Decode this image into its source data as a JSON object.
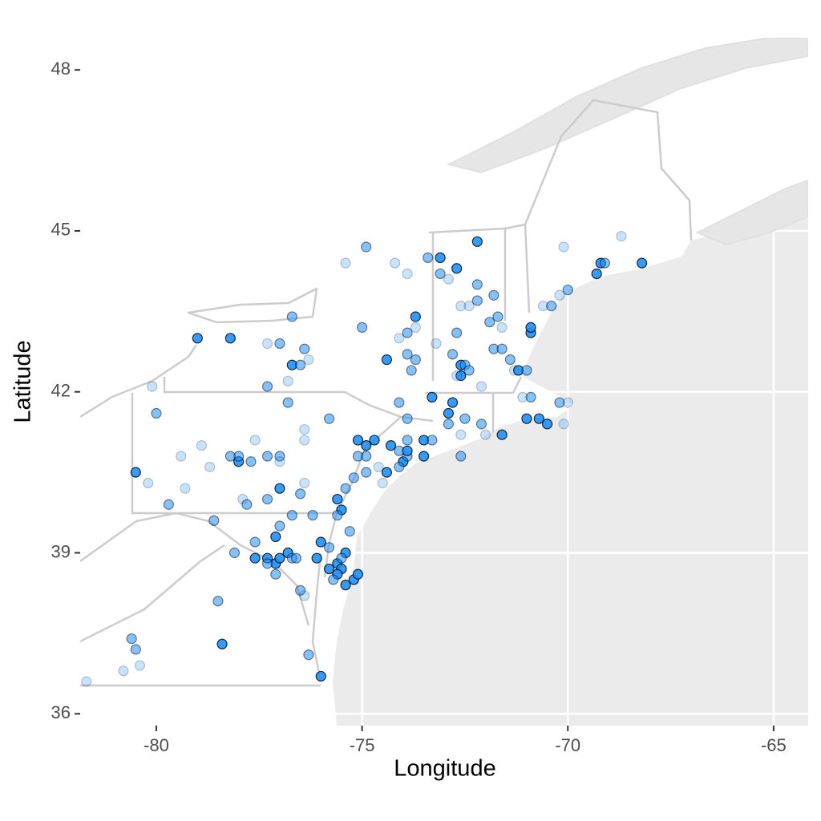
{
  "chart_data": {
    "type": "scatter",
    "xlabel": "Longitude",
    "ylabel": "Latitude",
    "xlim": [
      -81.85,
      -64.16
    ],
    "ylim": [
      35.78,
      48.6
    ],
    "xticks": [
      -80,
      -75,
      -70,
      -65
    ],
    "yticks": [
      36,
      39,
      42,
      45,
      48
    ],
    "grid": true,
    "color": "#1e90ff",
    "x": [
      -81.7,
      -80.8,
      -80.4,
      -80.6,
      -80.5,
      -78.4,
      -78.5,
      -76.3,
      -76.0,
      -80.5,
      -80.2,
      -80.0,
      -80.1,
      -79.7,
      -79.3,
      -78.9,
      -79.4,
      -78.7,
      -79.0,
      -78.2,
      -78.0,
      -78.0,
      -78.2,
      -77.6,
      -77.7,
      -77.3,
      -77.0,
      -77.0,
      -77.9,
      -77.8,
      -77.0,
      -77.3,
      -77.3,
      -77.0,
      -76.7,
      -76.7,
      -76.5,
      -76.4,
      -76.3,
      -77.3,
      -76.8,
      -76.8,
      -76.4,
      -76.4,
      -75.8,
      -76.4,
      -76.5,
      -76.7,
      -76.2,
      -75.6,
      -75.5,
      -75.6,
      -75.4,
      -75.2,
      -74.9,
      -75.1,
      -74.9,
      -75.1,
      -74.9,
      -74.7,
      -74.4,
      -74.3,
      -74.1,
      -74.0,
      -73.9,
      -74.1,
      -73.9,
      -73.5,
      -73.5,
      -73.3,
      -73.9,
      -73.9,
      -74.1,
      -74.4,
      -73.9,
      -73.7,
      -73.8,
      -73.7,
      -73.9,
      -73.7,
      -74.1,
      -75.0,
      -74.9,
      -75.4,
      -74.2,
      -73.9,
      -73.4,
      -73.1,
      -72.7,
      -73.1,
      -72.9,
      -72.2,
      -72.2,
      -72.2,
      -72.6,
      -72.4,
      -71.8,
      -71.9,
      -71.7,
      -71.6,
      -72.7,
      -73.2,
      -70.9,
      -70.9,
      -70.6,
      -70.4,
      -70.2,
      -70.0,
      -70.1,
      -69.3,
      -69.2,
      -69.1,
      -68.7,
      -68.2,
      -72.6,
      -72.6,
      -72.5,
      -72.4,
      -72.8,
      -72.7,
      -72.1,
      -71.8,
      -71.6,
      -71.4,
      -71.3,
      -71.2,
      -71.0,
      -70.9,
      -71.1,
      -71.0,
      -70.7,
      -70.5,
      -70.2,
      -70.0,
      -70.1,
      -71.6,
      -73.3,
      -72.8,
      -72.9,
      -72.9,
      -72.6,
      -72.5,
      -72.1,
      -72.0,
      -72.6,
      -74.6,
      -74.5,
      -75.3,
      -75.4,
      -75.6,
      -75.5,
      -75.6,
      -75.4,
      -75.2,
      -75.1,
      -75.8,
      -75.7,
      -75.5,
      -76.0,
      -76.1,
      -75.8,
      -77.3,
      -77.1,
      -77.0,
      -76.8,
      -76.7,
      -77.1,
      -77.3,
      -76.6,
      -76.5,
      -76.4,
      -77.6,
      -77.6,
      -77.1,
      -77.0,
      -78.1,
      -78.6
    ],
    "y": [
      36.6,
      36.8,
      36.9,
      37.4,
      37.2,
      37.3,
      38.1,
      37.1,
      36.7,
      40.5,
      40.3,
      41.6,
      42.1,
      39.9,
      40.2,
      41.0,
      40.8,
      40.6,
      43.0,
      43.0,
      40.7,
      40.8,
      40.8,
      41.1,
      40.7,
      40.8,
      40.8,
      40.7,
      40.0,
      39.9,
      40.2,
      40.0,
      42.9,
      42.9,
      43.4,
      42.5,
      42.5,
      42.8,
      42.6,
      42.1,
      42.2,
      41.8,
      41.3,
      41.1,
      41.5,
      40.3,
      40.1,
      39.7,
      39.7,
      40.0,
      39.8,
      39.7,
      40.2,
      40.4,
      40.5,
      40.8,
      40.8,
      41.1,
      41.0,
      41.1,
      40.5,
      41.0,
      40.9,
      40.7,
      40.8,
      40.6,
      40.9,
      40.8,
      41.1,
      41.1,
      41.1,
      41.5,
      41.8,
      42.6,
      42.7,
      42.6,
      42.4,
      43.4,
      43.1,
      43.2,
      43.0,
      43.2,
      44.7,
      44.4,
      44.4,
      44.2,
      44.5,
      44.5,
      44.3,
      44.2,
      44.1,
      44.8,
      44.0,
      43.7,
      43.6,
      43.6,
      43.8,
      43.3,
      43.4,
      43.2,
      43.1,
      42.9,
      43.1,
      43.2,
      43.6,
      43.6,
      43.8,
      43.9,
      44.7,
      44.2,
      44.4,
      44.4,
      44.9,
      44.4,
      42.5,
      42.3,
      42.5,
      42.4,
      42.7,
      42.3,
      42.1,
      42.8,
      42.8,
      42.6,
      42.4,
      42.4,
      42.4,
      41.9,
      41.9,
      41.5,
      41.5,
      41.4,
      41.8,
      41.8,
      41.4,
      41.2,
      41.9,
      41.8,
      41.4,
      41.6,
      41.2,
      41.5,
      41.4,
      41.2,
      40.8,
      40.6,
      40.3,
      39.4,
      39.0,
      38.8,
      38.7,
      38.6,
      38.4,
      38.5,
      38.6,
      38.7,
      38.5,
      38.9,
      39.2,
      38.9,
      39.1,
      38.9,
      38.8,
      38.9,
      39.0,
      38.9,
      38.6,
      38.8,
      38.9,
      38.3,
      38.2,
      38.9,
      39.2,
      39.3,
      39.5,
      39.0,
      39.6
    ],
    "alpha": [
      0.25,
      0.25,
      0.25,
      0.55,
      0.55,
      0.9,
      0.55,
      0.55,
      0.9,
      0.9,
      0.25,
      0.55,
      0.25,
      0.55,
      0.25,
      0.25,
      0.25,
      0.25,
      0.9,
      0.9,
      0.9,
      0.55,
      0.55,
      0.25,
      0.55,
      0.55,
      0.55,
      0.25,
      0.25,
      0.55,
      0.9,
      0.55,
      0.25,
      0.55,
      0.55,
      0.9,
      0.55,
      0.55,
      0.25,
      0.55,
      0.25,
      0.55,
      0.25,
      0.25,
      0.55,
      0.25,
      0.55,
      0.55,
      0.55,
      0.9,
      0.9,
      0.55,
      0.55,
      0.55,
      0.55,
      0.55,
      0.55,
      0.9,
      0.9,
      0.9,
      0.9,
      0.9,
      0.55,
      0.9,
      0.55,
      0.55,
      0.9,
      0.9,
      0.9,
      0.55,
      0.55,
      0.55,
      0.55,
      0.9,
      0.55,
      0.55,
      0.55,
      0.9,
      0.55,
      0.25,
      0.25,
      0.55,
      0.55,
      0.25,
      0.25,
      0.25,
      0.55,
      0.9,
      0.9,
      0.55,
      0.25,
      0.9,
      0.55,
      0.55,
      0.25,
      0.25,
      0.55,
      0.55,
      0.55,
      0.25,
      0.55,
      0.25,
      0.9,
      0.9,
      0.25,
      0.55,
      0.25,
      0.55,
      0.25,
      0.9,
      0.9,
      0.55,
      0.25,
      0.9,
      0.9,
      0.9,
      0.55,
      0.55,
      0.55,
      0.25,
      0.25,
      0.55,
      0.55,
      0.55,
      0.25,
      0.9,
      0.55,
      0.55,
      0.25,
      0.9,
      0.9,
      0.9,
      0.55,
      0.25,
      0.25,
      0.9,
      0.9,
      0.9,
      0.55,
      0.9,
      0.25,
      0.55,
      0.55,
      0.25,
      0.55,
      0.25,
      0.25,
      0.55,
      0.9,
      0.9,
      0.9,
      0.9,
      0.9,
      0.9,
      0.9,
      0.9,
      0.55,
      0.55,
      0.9,
      0.9,
      0.55,
      0.9,
      0.9,
      0.9,
      0.9,
      0.55,
      0.55,
      0.55,
      0.55,
      0.55,
      0.25,
      0.9,
      0.55,
      0.9,
      0.55,
      0.55,
      0.55
    ]
  }
}
